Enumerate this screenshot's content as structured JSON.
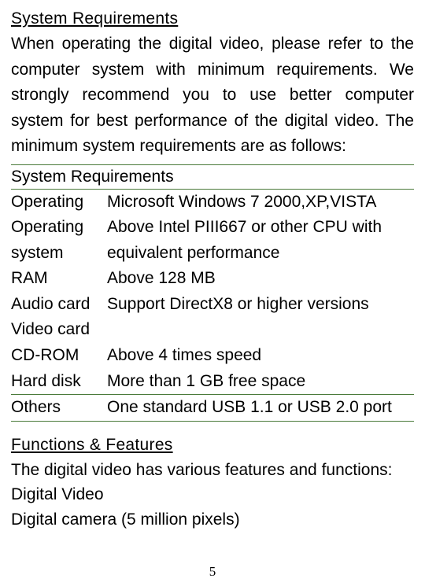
{
  "section1": {
    "heading": "System Requirements",
    "intro": "When operating the digital video, please refer to the computer system with minimum requirements. We strongly recommend you to use better computer system for best performance of the digital video. The minimum system requirements are as follows:"
  },
  "table": {
    "header": "System Requirements",
    "rows": [
      {
        "label": "Operating",
        "value": "Microsoft Windows 7 2000,XP,VISTA"
      },
      {
        "label": "Operating system",
        "value": "Above Intel PIII667 or other CPU with equivalent performance"
      },
      {
        "label": "RAM",
        "value": "Above 128 MB"
      },
      {
        "label": "Audio card Video card",
        "value": "Support DirectX8 or higher versions"
      },
      {
        "label": "CD-ROM",
        "value": "Above 4 times speed"
      },
      {
        "label": "Hard disk",
        "value": "More than 1 GB free space"
      }
    ],
    "footer": [
      {
        "label": "Others",
        "value": "One standard USB 1.1 or USB 2.0 port"
      }
    ]
  },
  "section2": {
    "heading": "Functions & Features",
    "intro": "The digital video has various features and functions:",
    "items": [
      "Digital Video",
      "Digital camera (5 million pixels)"
    ]
  },
  "pageNumber": "5",
  "colors": {
    "border": "#4a7a3a",
    "text": "#000000",
    "background": "#ffffff"
  }
}
